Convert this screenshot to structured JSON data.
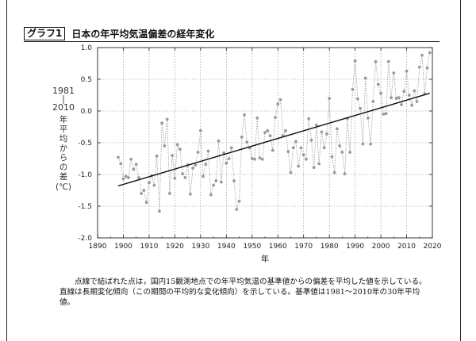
{
  "header": {
    "badge": "グラフ1",
    "title": "日本の年平均気温偏差の経年変化"
  },
  "caption": {
    "text": "点線で結ばれた点は，国内15観測地点での年平均気温の基準値からの偏差を平均した値を示している。直線は長期変化傾向（この期間の平均的な変化傾向）を示している。基準値は1981〜2010年の30年平均値。"
  },
  "chart_data": {
    "type": "line",
    "xlabel": "年",
    "ylabel_lines": [
      "1981",
      "|",
      "2010",
      "年",
      "平",
      "均",
      "か",
      "ら",
      "の",
      "差",
      "(℃)"
    ],
    "xlim": [
      1890,
      2020
    ],
    "ylim": [
      -2.0,
      1.0
    ],
    "xticks": [
      1890,
      1900,
      1910,
      1920,
      1930,
      1940,
      1950,
      1960,
      1970,
      1980,
      1990,
      2000,
      2010,
      2020
    ],
    "yticks": [
      -2.0,
      -1.5,
      -1.0,
      -0.5,
      0.0,
      0.5,
      1.0
    ],
    "ytick_labels": [
      "-2.0",
      "-1.5",
      "-1.0",
      "-0.5",
      "0.0",
      "0.5",
      "1.0"
    ],
    "grid": true,
    "colors": {
      "points": "#9a9a9a",
      "trend": "#111111",
      "grid": "#888888"
    },
    "series": [
      {
        "style": "dotted-markers",
        "x": [
          1898,
          1899,
          1900,
          1901,
          1902,
          1903,
          1904,
          1905,
          1906,
          1907,
          1908,
          1909,
          1910,
          1911,
          1912,
          1913,
          1914,
          1915,
          1916,
          1917,
          1918,
          1919,
          1920,
          1921,
          1922,
          1923,
          1924,
          1925,
          1926,
          1927,
          1928,
          1929,
          1930,
          1931,
          1932,
          1933,
          1934,
          1935,
          1936,
          1937,
          1938,
          1939,
          1940,
          1941,
          1942,
          1943,
          1944,
          1945,
          1946,
          1947,
          1948,
          1949,
          1950,
          1951,
          1952,
          1953,
          1954,
          1955,
          1956,
          1957,
          1958,
          1959,
          1960,
          1961,
          1962,
          1963,
          1964,
          1965,
          1966,
          1967,
          1968,
          1969,
          1970,
          1971,
          1972,
          1973,
          1974,
          1975,
          1976,
          1977,
          1978,
          1979,
          1980,
          1981,
          1982,
          1983,
          1984,
          1985,
          1986,
          1987,
          1988,
          1989,
          1990,
          1991,
          1992,
          1993,
          1994,
          1995,
          1996,
          1997,
          1998,
          1999,
          2000,
          2001,
          2002,
          2003,
          2004,
          2005,
          2006,
          2007,
          2008,
          2009,
          2010,
          2011,
          2012,
          2013,
          2014,
          2015,
          2016,
          2017,
          2018,
          2019
        ],
        "y": [
          -0.73,
          -0.83,
          -1.07,
          -1.03,
          -1.05,
          -0.76,
          -0.92,
          -0.84,
          -1.05,
          -1.3,
          -1.25,
          -1.44,
          -1.13,
          -1.02,
          -1.17,
          -0.71,
          -1.58,
          -0.19,
          -0.55,
          -0.13,
          -1.3,
          -0.7,
          -1.06,
          -0.53,
          -0.6,
          -0.99,
          -1.05,
          -0.85,
          -1.31,
          -0.9,
          -0.85,
          -0.65,
          -0.31,
          -1.03,
          -0.84,
          -0.63,
          -1.32,
          -1.17,
          -1.1,
          -0.47,
          -1.12,
          -0.66,
          -0.82,
          -0.75,
          -0.58,
          -1.1,
          -1.55,
          -1.42,
          -0.41,
          -0.06,
          -0.49,
          -0.58,
          -0.75,
          -0.76,
          -0.11,
          -0.74,
          -0.76,
          -0.34,
          -0.31,
          -0.39,
          -0.62,
          -0.1,
          0.11,
          0.18,
          -0.39,
          -0.31,
          -0.64,
          -0.97,
          -0.58,
          -0.48,
          -0.87,
          -0.58,
          -0.69,
          -0.76,
          -0.12,
          -0.46,
          -0.89,
          -0.22,
          -0.83,
          -0.33,
          -0.58,
          -0.36,
          0.2,
          -0.72,
          -0.97,
          -0.28,
          -0.55,
          -0.65,
          -0.99,
          -0.12,
          -0.65,
          0.34,
          0.79,
          0.19,
          0.04,
          -0.52,
          0.52,
          -0.11,
          -0.52,
          0.15,
          0.78,
          0.42,
          0.28,
          -0.05,
          -0.04,
          0.78,
          0.21,
          0.6,
          0.2,
          0.21,
          0.1,
          0.31,
          0.63,
          0.25,
          0.09,
          0.32,
          0.15,
          0.69,
          0.88,
          0.27,
          0.68,
          0.92
        ]
      },
      {
        "style": "trend-line",
        "x": [
          1898,
          2019
        ],
        "y": [
          -1.18,
          0.28
        ]
      }
    ]
  }
}
